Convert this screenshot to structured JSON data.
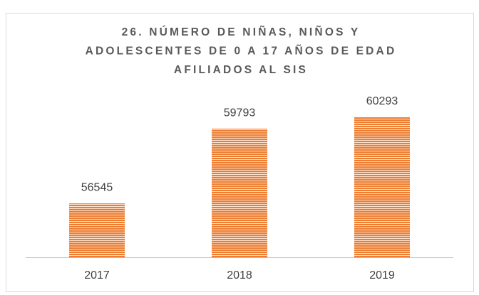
{
  "chart_data": {
    "type": "bar",
    "title": [
      "26. NÚMERO DE NIÑAS, NIÑOS Y",
      "ADOLESCENTES DE 0 A 17 AÑOS DE EDAD",
      "AFILIADOS AL SIS"
    ],
    "categories": [
      "2017",
      "2018",
      "2019"
    ],
    "values": [
      56545,
      59793,
      60293
    ],
    "color": "#ed7d31",
    "ylim": [
      54200,
      61000
    ]
  }
}
